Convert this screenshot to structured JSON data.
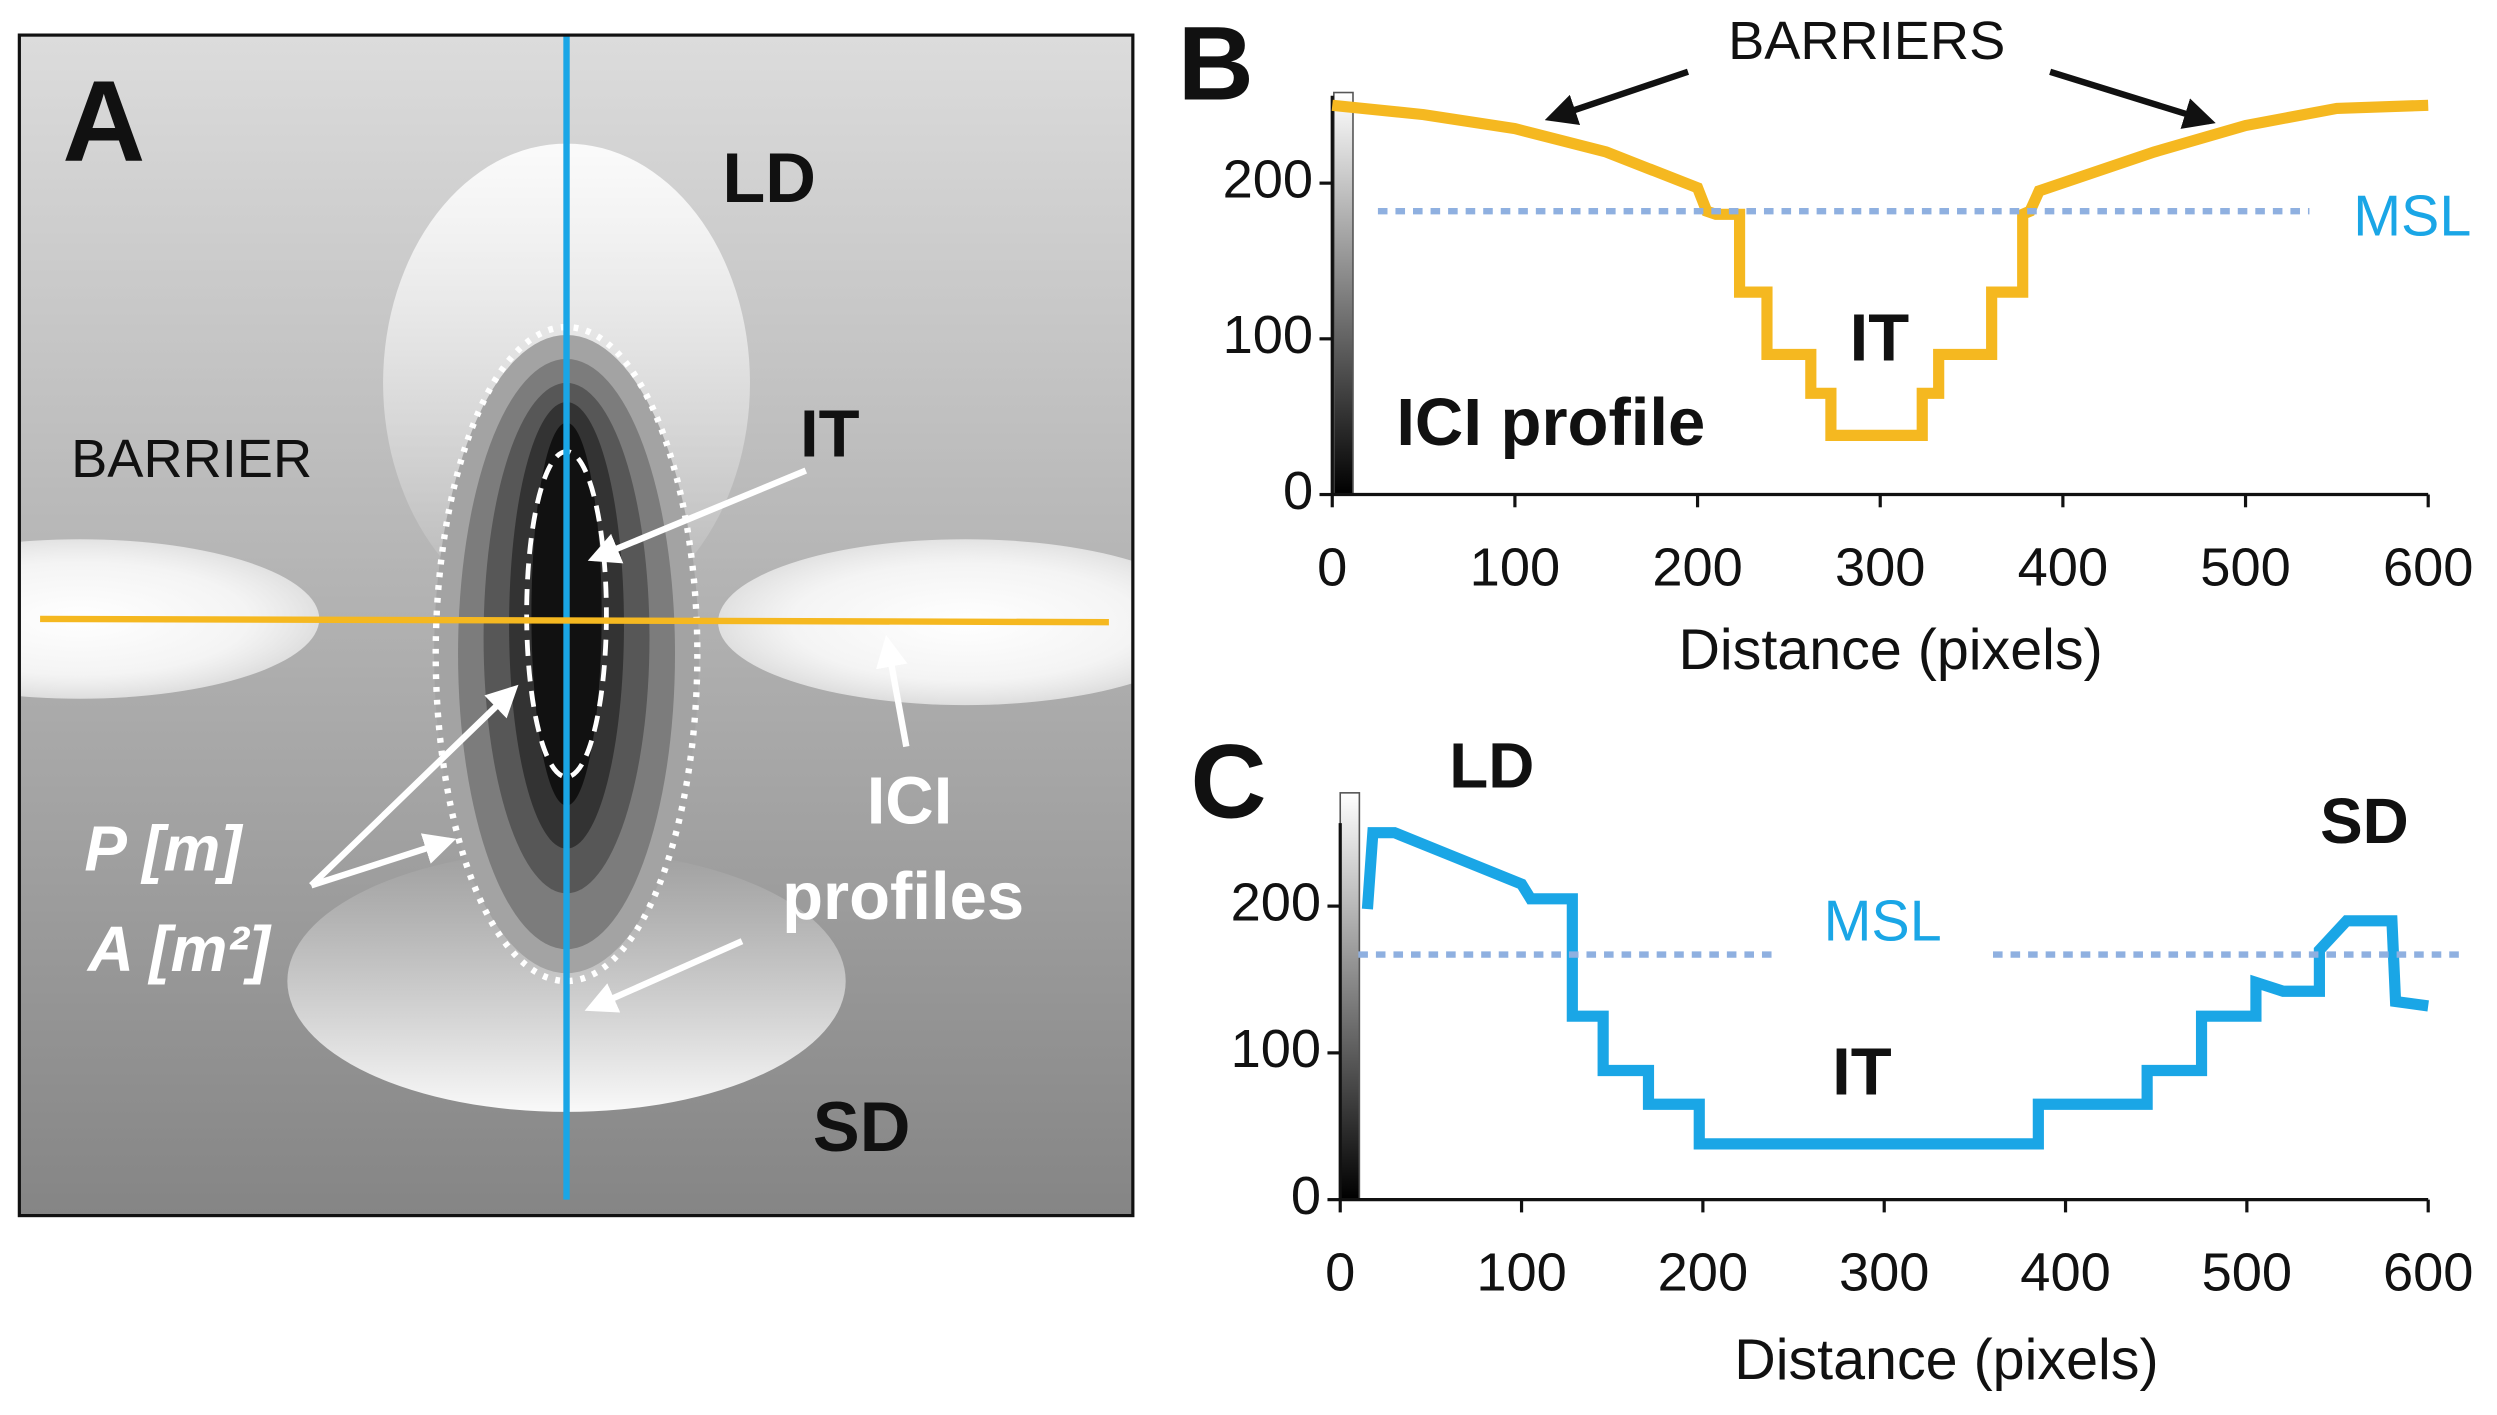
{
  "diagram": {
    "panel_label": "A",
    "labels": [
      "LD",
      "IT",
      "BARRIER",
      "P [m]",
      "A [m²]",
      "ICI",
      "profiles",
      "SD"
    ]
  },
  "chart_data": [
    {
      "type": "line",
      "panel_label": "B",
      "xlabel": "Distance (pixels)",
      "annotations": [
        "BARRIERS",
        "IT",
        "ICI profile"
      ],
      "xlim": [
        0,
        600
      ],
      "xticks": [
        0,
        100,
        200,
        300,
        400,
        500,
        600
      ],
      "ylim": [
        0,
        250
      ],
      "yticks": [
        0,
        100,
        200
      ],
      "series": [
        {
          "color": "#f5b820",
          "style": "solid",
          "x": [
            0,
            50,
            100,
            150,
            200,
            205,
            210,
            223,
            223,
            238,
            238,
            262,
            262,
            273,
            273,
            323,
            323,
            332,
            332,
            361,
            361,
            378,
            378,
            382,
            387,
            450,
            500,
            550,
            600
          ],
          "values": [
            250,
            244,
            235,
            220,
            197,
            182,
            180,
            180,
            130,
            130,
            90,
            90,
            65,
            65,
            38,
            38,
            65,
            65,
            90,
            90,
            130,
            130,
            180,
            182,
            195,
            220,
            237,
            248,
            250
          ]
        },
        {
          "name": "MSL",
          "color": "#8fb0e0",
          "style": "dotted",
          "x": [
            25,
            535
          ],
          "values": [
            182,
            182
          ]
        }
      ]
    },
    {
      "type": "line",
      "panel_label": "C",
      "xlabel": "Distance (pixels)",
      "annotations": [
        "LD",
        "SD",
        "IT"
      ],
      "xlim": [
        0,
        600
      ],
      "xticks": [
        0,
        100,
        200,
        300,
        400,
        500,
        600
      ],
      "ylim": [
        0,
        250
      ],
      "yticks": [
        0,
        100,
        200
      ],
      "series": [
        {
          "color": "#1aa6e6",
          "style": "solid",
          "x": [
            15,
            18,
            30,
            60,
            100,
            105,
            125,
            128,
            128,
            145,
            145,
            170,
            170,
            198,
            198,
            385,
            385,
            445,
            445,
            475,
            475,
            505,
            505,
            520,
            540,
            540,
            555,
            580,
            582,
            600
          ],
          "values": [
            198,
            250,
            250,
            235,
            215,
            205,
            205,
            205,
            125,
            125,
            88,
            88,
            65,
            65,
            38,
            38,
            65,
            65,
            88,
            88,
            125,
            125,
            148,
            142,
            142,
            170,
            190,
            190,
            135,
            132
          ]
        },
        {
          "name": "MSL",
          "color": "#8fb0e0",
          "style": "dotted",
          "x": [
            10,
            240,
            300,
            360,
            620
          ],
          "values": [
            167,
            167,
            null,
            167,
            167
          ]
        }
      ]
    }
  ]
}
